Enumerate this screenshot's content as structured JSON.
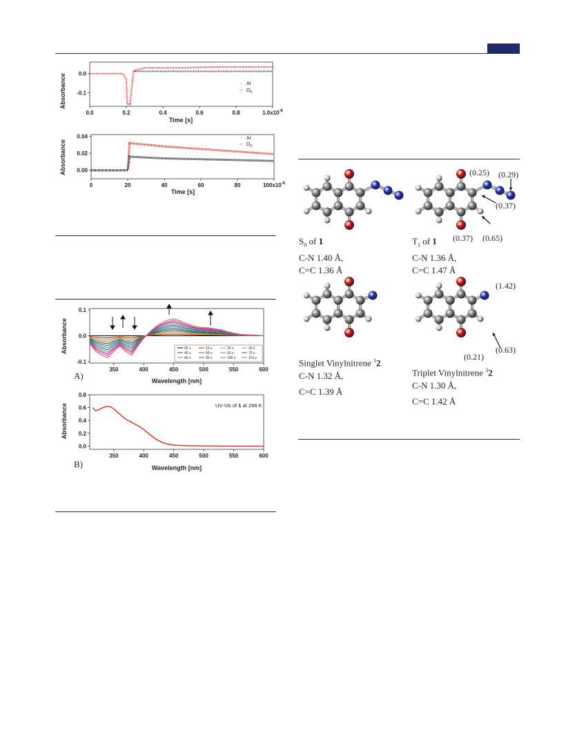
{
  "chart_data": [
    {
      "type": "scatter",
      "ylabel": "Absorbance",
      "xlabel": "Time [s]",
      "xlim": [
        0,
        1e-06
      ],
      "ylim": [
        -0.17,
        0.06
      ],
      "x_ticks": [
        "0.0",
        "0.2",
        "0.4",
        "0.6",
        "0.8",
        "1.0x10"
      ],
      "x_tick_exponent": "-6",
      "y_ticks": [
        "0.0",
        "-0.1"
      ],
      "legend": "right",
      "series": [
        {
          "name": "Ar",
          "color": "#e8231e",
          "marker": "·",
          "x": [
            0,
            1e-07,
            1.8e-07,
            2e-07,
            2.05e-07,
            2.2e-07,
            2.4e-07,
            3e-07,
            5e-07,
            7e-07,
            1e-06
          ],
          "y": [
            0.0,
            0.0,
            0.0,
            -0.03,
            -0.16,
            -0.16,
            0.015,
            0.03,
            0.03,
            0.035,
            0.035
          ]
        },
        {
          "name": "O2",
          "color": "#111111",
          "marker": "·",
          "x": [
            2.4e-07,
            3e-07,
            5e-07,
            7e-07,
            1e-06
          ],
          "y": [
            0.012,
            0.012,
            0.012,
            0.012,
            0.012
          ]
        }
      ]
    },
    {
      "type": "scatter",
      "ylabel": "Absorbance",
      "xlabel": "Time [s]",
      "xlim": [
        0,
        0.0001
      ],
      "ylim": [
        -0.01,
        0.042
      ],
      "x_ticks": [
        "0",
        "20",
        "40",
        "60",
        "80",
        "100x10"
      ],
      "x_tick_exponent": "-6",
      "y_ticks": [
        "0.04",
        "0.02",
        "0.00"
      ],
      "legend": "top-right",
      "series": [
        {
          "name": "Ar",
          "color": "#e8231e",
          "marker": "·",
          "x": [
            0,
            1e-05,
            2e-05,
            2.1e-05,
            4e-05,
            6e-05,
            8e-05,
            0.0001
          ],
          "y": [
            0.0,
            0.0,
            0.0,
            0.032,
            0.028,
            0.025,
            0.022,
            0.019
          ]
        },
        {
          "name": "O2",
          "color": "#111111",
          "marker": "·",
          "x": [
            0,
            1e-05,
            2e-05,
            2.1e-05,
            4e-05,
            6e-05,
            8e-05,
            0.0001
          ],
          "y": [
            0.0,
            0.0,
            0.0,
            0.016,
            0.014,
            0.013,
            0.012,
            0.011
          ]
        }
      ]
    },
    {
      "type": "line",
      "ylabel": "Absorbance",
      "xlabel": "Wavelength [nm]",
      "xlim": [
        310,
        600
      ],
      "ylim": [
        -0.105,
        0.105
      ],
      "x_ticks": [
        "350",
        "400",
        "450",
        "500",
        "550",
        "600"
      ],
      "y_ticks": [
        "0.1",
        "0.0",
        "-0.1"
      ],
      "legend": "bottom-right",
      "panel": "A)",
      "series": [
        {
          "name": "00 s",
          "color": "#000000",
          "scale": 0.0
        },
        {
          "name": "10 s",
          "color": "#c0202a",
          "scale": 0.09
        },
        {
          "name": "20 s",
          "color": "#a0a020",
          "scale": 0.18
        },
        {
          "name": "30 s",
          "color": "#c08020",
          "scale": 0.27
        },
        {
          "name": "40 s",
          "color": "#2040a0",
          "scale": 0.36
        },
        {
          "name": "50 s",
          "color": "#208030",
          "scale": 0.45
        },
        {
          "name": "60 s",
          "color": "#20a0c0",
          "scale": 0.54
        },
        {
          "name": "70 s",
          "color": "#a020a0",
          "scale": 0.63
        },
        {
          "name": "80 s",
          "color": "#40c040",
          "scale": 0.72
        },
        {
          "name": "90 s",
          "color": "#8030c0",
          "scale": 0.81
        },
        {
          "name": "100 s",
          "color": "#e040a0",
          "scale": 0.9
        },
        {
          "name": "110 s",
          "color": "#ff5050",
          "scale": 1.0
        }
      ],
      "final_spectrum": {
        "x": [
          310,
          320,
          330,
          340,
          350,
          360,
          370,
          380,
          390,
          400,
          410,
          420,
          430,
          440,
          450,
          460,
          470,
          480,
          490,
          500,
          510,
          520,
          530,
          540,
          550,
          560,
          570,
          580,
          590,
          600
        ],
        "y": [
          -0.03,
          -0.06,
          -0.075,
          -0.085,
          -0.06,
          -0.04,
          -0.06,
          -0.075,
          -0.04,
          -0.01,
          0.015,
          0.035,
          0.05,
          0.06,
          0.065,
          0.058,
          0.048,
          0.04,
          0.034,
          0.032,
          0.03,
          0.026,
          0.022,
          0.016,
          0.01,
          0.006,
          0.004,
          0.003,
          0.002,
          0.0
        ]
      }
    },
    {
      "type": "line",
      "ylabel": "Absorbance",
      "xlabel": "Wavelength [nm]",
      "xlim": [
        310,
        600
      ],
      "ylim": [
        -0.05,
        0.8
      ],
      "x_ticks": [
        "350",
        "400",
        "450",
        "500",
        "550",
        "600"
      ],
      "y_ticks": [
        "0.8",
        "0.6",
        "0.4",
        "0.2",
        "0.0"
      ],
      "panel": "B)",
      "annotation": "UV-Vis of 1 at 298 K",
      "series": [
        {
          "color": "#e8231e",
          "x": [
            315,
            320,
            325,
            330,
            335,
            340,
            345,
            350,
            355,
            360,
            365,
            370,
            380,
            390,
            400,
            410,
            420,
            430,
            440,
            450,
            460,
            480,
            500,
            550,
            600
          ],
          "y": [
            0.6,
            0.55,
            0.57,
            0.59,
            0.61,
            0.62,
            0.61,
            0.58,
            0.54,
            0.5,
            0.46,
            0.42,
            0.37,
            0.32,
            0.26,
            0.18,
            0.11,
            0.06,
            0.03,
            0.015,
            0.01,
            0.005,
            0.003,
            0.0,
            0.0
          ]
        }
      ]
    }
  ],
  "fig1_legend": {
    "ar": "Ar",
    "o2": "O",
    "o2_sub": "2"
  },
  "fig2_legend": {
    "ar": "Ar",
    "o2": "O",
    "o2_sub": "2"
  },
  "fig4_annotation": {
    "pre": "UV-Vis of ",
    "bold": "1",
    "post": " at 298 K"
  },
  "molecules": {
    "s0": {
      "title": "S",
      "sub": "0",
      "of": " of ",
      "bold": "1",
      "line1": "C-N 1.40 Å,",
      "line2": "C=C 1.36 Å"
    },
    "t1": {
      "title": "T",
      "sub": "1",
      "of": " of ",
      "bold": "1",
      "line1": "C-N 1.36 Å,",
      "line2": "C=C 1.47 Å",
      "spin_o_top": "(0.25)",
      "spin_n_end": "(0.29)",
      "spin_c_ring": "(0.37)",
      "spin_o_bottom": "(0.37)",
      "spin_h": "(0.65)"
    },
    "singlet": {
      "title": "Singlet Vinylnitrene ",
      "sup": "1",
      "bold": "2",
      "line1": "C-N 1.32 Å,",
      "line2": "C=C 1.39 Å"
    },
    "triplet": {
      "title": "Triplet Vinylnitrene ",
      "sup": "3",
      "bold": "2",
      "line1": "C-N 1.30 Å,",
      "line2": "C=C 1.42 Å",
      "spin_n": "(1.42)",
      "spin_c": "(0.63)",
      "spin_o": "(0.21)"
    }
  },
  "colors": {
    "rule": "#1f2a6b",
    "oxygen": "#cc1010",
    "nitrogen": "#1a28b8",
    "carbon": "#808080",
    "hydrogen": "#d4d4d4"
  }
}
